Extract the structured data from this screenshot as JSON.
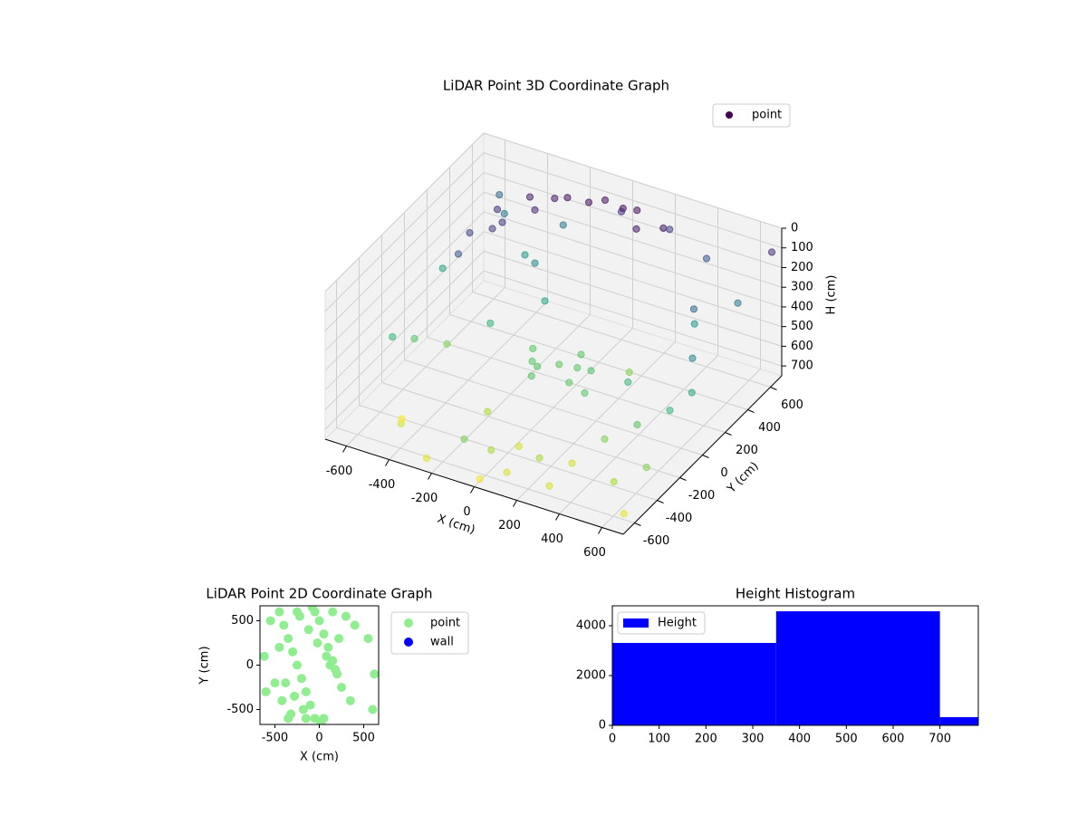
{
  "chart_data": [
    {
      "type": "scatter3d",
      "title": "LiDAR Point 3D Coordinate Graph",
      "xlabel": "X (cm)",
      "ylabel": "Y (cm)",
      "zlabel": "H (cm)",
      "xlim": [
        -700,
        700
      ],
      "ylim": [
        -700,
        700
      ],
      "zlim": [
        0,
        750
      ],
      "zinvert": true,
      "xticks": [
        -600,
        -400,
        -200,
        0,
        200,
        400,
        600
      ],
      "yticks": [
        -600,
        -400,
        -200,
        0,
        200,
        400,
        600
      ],
      "zticks": [
        0,
        100,
        200,
        300,
        400,
        500,
        600,
        700
      ],
      "colormap": "viridis",
      "legend": "upper right",
      "legend_color": "#440154",
      "series": [
        {
          "name": "point",
          "x": [
            -500,
            -450,
            -350,
            -200,
            -50,
            100,
            250,
            -500,
            -400,
            -300,
            -100,
            150,
            -420,
            -250,
            50,
            -100,
            0,
            100,
            -50,
            150,
            50,
            -150,
            200,
            -60,
            80,
            -600,
            -550,
            -400,
            -300,
            -200,
            -100,
            0,
            100,
            200,
            300,
            400,
            500,
            600,
            650,
            -650,
            -600,
            -500,
            -350,
            -150,
            50,
            250,
            450,
            600,
            680,
            -680,
            -450,
            -250,
            0,
            300,
            550,
            650,
            400,
            200,
            -300,
            500,
            600,
            -500,
            0,
            350,
            650
          ],
          "y": [
            200,
            350,
            450,
            500,
            550,
            550,
            500,
            100,
            300,
            400,
            500,
            450,
            250,
            480,
            520,
            0,
            50,
            -50,
            -100,
            50,
            150,
            100,
            -100,
            -30,
            60,
            650,
            600,
            500,
            400,
            300,
            -600,
            -550,
            -600,
            -500,
            -400,
            -300,
            -200,
            -100,
            0,
            -200,
            -100,
            0,
            100,
            -300,
            -400,
            200,
            400,
            500,
            650,
            300,
            -500,
            -650,
            -650,
            -600,
            -500,
            -400,
            600,
            650,
            650,
            300,
            100,
            -400,
            600,
            0,
            -600
          ],
          "h": [
            150,
            100,
            60,
            40,
            30,
            30,
            40,
            200,
            120,
            80,
            30,
            50,
            130,
            50,
            20,
            550,
            560,
            560,
            550,
            540,
            550,
            560,
            550,
            545,
            555,
            250,
            300,
            400,
            350,
            450,
            600,
            650,
            700,
            650,
            700,
            600,
            550,
            500,
            450,
            500,
            550,
            600,
            500,
            650,
            700,
            600,
            400,
            300,
            100,
            450,
            700,
            720,
            740,
            700,
            650,
            600,
            200,
            150,
            300,
            250,
            350,
            750,
            100,
            500,
            720
          ]
        }
      ]
    },
    {
      "type": "scatter",
      "title": "LiDAR Point 2D Coordinate Graph",
      "xlabel": "X (cm)",
      "ylabel": "Y (cm)",
      "xlim": [
        -668,
        668
      ],
      "ylim": [
        -668,
        668
      ],
      "xticks": [
        -500,
        0,
        500
      ],
      "yticks": [
        -500,
        0,
        500
      ],
      "legend": "outside right",
      "series": [
        {
          "name": "point",
          "color": "#90ee90",
          "x": [
            -450,
            -400,
            -350,
            -300,
            -250,
            -200,
            -150,
            -100,
            -50,
            0,
            50,
            100,
            150,
            200,
            250,
            -420,
            -320,
            -220,
            -120,
            -20,
            80,
            180,
            -380,
            -280,
            -180,
            -80,
            20,
            120,
            220,
            -600,
            -550,
            600,
            550,
            -620,
            620,
            400,
            350,
            -500,
            -450,
            300,
            -350,
            -250,
            -150,
            -50,
            50,
            150
          ],
          "y": [
            600,
            450,
            300,
            150,
            0,
            -150,
            -300,
            -450,
            -600,
            500,
            350,
            200,
            50,
            -100,
            -250,
            -400,
            -550,
            550,
            400,
            250,
            100,
            -50,
            -200,
            -350,
            -500,
            650,
            -650,
            0,
            300,
            -300,
            500,
            -500,
            300,
            100,
            -100,
            450,
            -400,
            -200,
            200,
            550,
            -600,
            600,
            -600,
            600,
            -600,
            600
          ]
        },
        {
          "name": "wall",
          "color": "#0000ff",
          "x": [],
          "y": []
        }
      ]
    },
    {
      "type": "histogram",
      "title": "Height Histogram",
      "bins": [
        0,
        350,
        700,
        782
      ],
      "values": [
        3310,
        4580,
        330
      ],
      "color": "#0000ff",
      "xlim": [
        0,
        782
      ],
      "ylim": [
        0,
        4800
      ],
      "xticks": [
        0,
        100,
        200,
        300,
        400,
        500,
        600,
        700
      ],
      "yticks": [
        0,
        2000,
        4000
      ],
      "legend": "upper left",
      "series_name": "Height"
    }
  ]
}
